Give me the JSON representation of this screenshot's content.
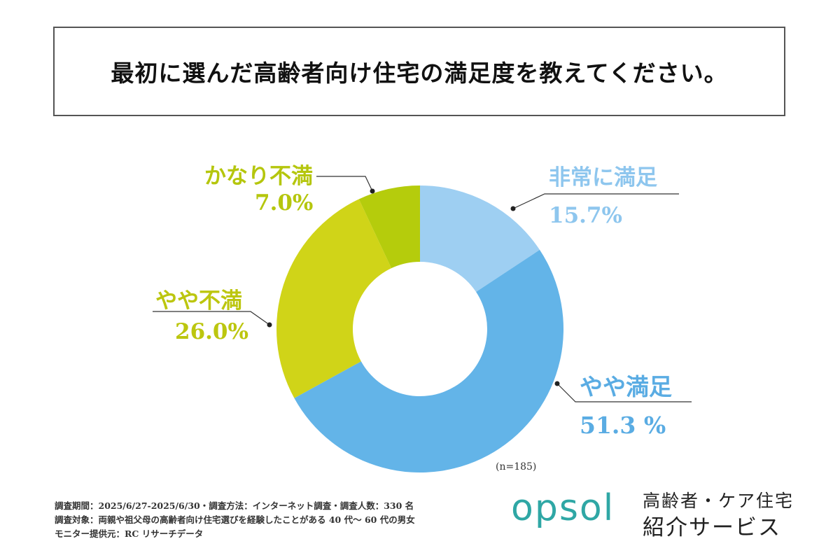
{
  "title": "最初に選んだ高齢者向け住宅の満足度を教えてください。",
  "chart_data": {
    "type": "pie",
    "donut": true,
    "sample_size_label": "(n=185)",
    "slices": [
      {
        "label": "非常に満足",
        "value": 15.7,
        "value_label": "15.7%",
        "color": "#9ecff2"
      },
      {
        "label": "やや満足",
        "value": 51.3,
        "value_label": "51.3 %",
        "color": "#63b4e8"
      },
      {
        "label": "やや不満",
        "value": 26.0,
        "value_label": "26.0%",
        "color": "#d0d418"
      },
      {
        "label": "かなり不満",
        "value": 7.0,
        "value_label": "7.0%",
        "color": "#b5cc0c"
      }
    ],
    "label_colors": {
      "satisfied": "#7fbfe8",
      "dissatisfied": "#b9c60d"
    }
  },
  "footnotes": [
    "調査期間：2025/6/27-2025/6/30・調査方法：インターネット調査・調査人数：330 名",
    "調査対象：両親や祖父母の高齢者向け住宅選びを経験したことがある 40 代～ 60 代の男女",
    "モニター提供元：RC リサーチデータ"
  ],
  "brand": {
    "logo": "opsol",
    "tagline_1": "高齢者・ケア住宅",
    "tagline_2": "紹介サービス",
    "color": "#2fa7a5"
  }
}
